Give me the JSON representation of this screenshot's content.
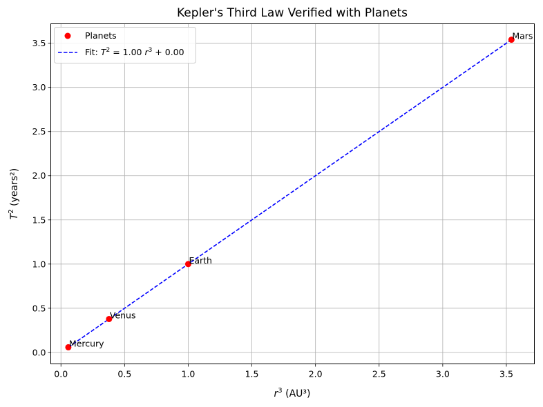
{
  "chart_data": {
    "type": "scatter",
    "title": "Kepler's Third Law Verified with Planets",
    "xlabel_var": "r",
    "xlabel_exp": "3",
    "xlabel_unit": " (AU³)",
    "ylabel_var": "T",
    "ylabel_exp": "2",
    "ylabel_unit": " (years²)",
    "xlim": [
      -0.08,
      3.72
    ],
    "ylim": [
      -0.13,
      3.72
    ],
    "xticks": [
      0.0,
      0.5,
      1.0,
      1.5,
      2.0,
      2.5,
      3.0,
      3.5
    ],
    "xtick_labels": [
      "0.0",
      "0.5",
      "1.0",
      "1.5",
      "2.0",
      "2.5",
      "3.0",
      "3.5"
    ],
    "yticks": [
      0.0,
      0.5,
      1.0,
      1.5,
      2.0,
      2.5,
      3.0,
      3.5
    ],
    "ytick_labels": [
      "0.0",
      "0.5",
      "1.0",
      "1.5",
      "2.0",
      "2.5",
      "3.0",
      "3.5"
    ],
    "grid": true,
    "legend_position": "top-left",
    "series": [
      {
        "name": "Planets",
        "kind": "points",
        "color": "#ff0000",
        "points": [
          {
            "label": "Mercury",
            "x": 0.058,
            "y": 0.058
          },
          {
            "label": "Venus",
            "x": 0.378,
            "y": 0.378
          },
          {
            "label": "Earth",
            "x": 1.0,
            "y": 1.0
          },
          {
            "label": "Mars",
            "x": 3.54,
            "y": 3.54
          }
        ]
      },
      {
        "name_prefix": "Fit: ",
        "name_var": "T",
        "name_exp": "2",
        "name_mid": " = 1.00 ",
        "name_var2": "r",
        "name_exp2": "3",
        "name_suffix": " + 0.00",
        "kind": "line",
        "style": "dashed",
        "color": "#0000ff",
        "slope": 1.0,
        "intercept": 0.0,
        "x_range": [
          0.058,
          3.54
        ]
      }
    ]
  }
}
